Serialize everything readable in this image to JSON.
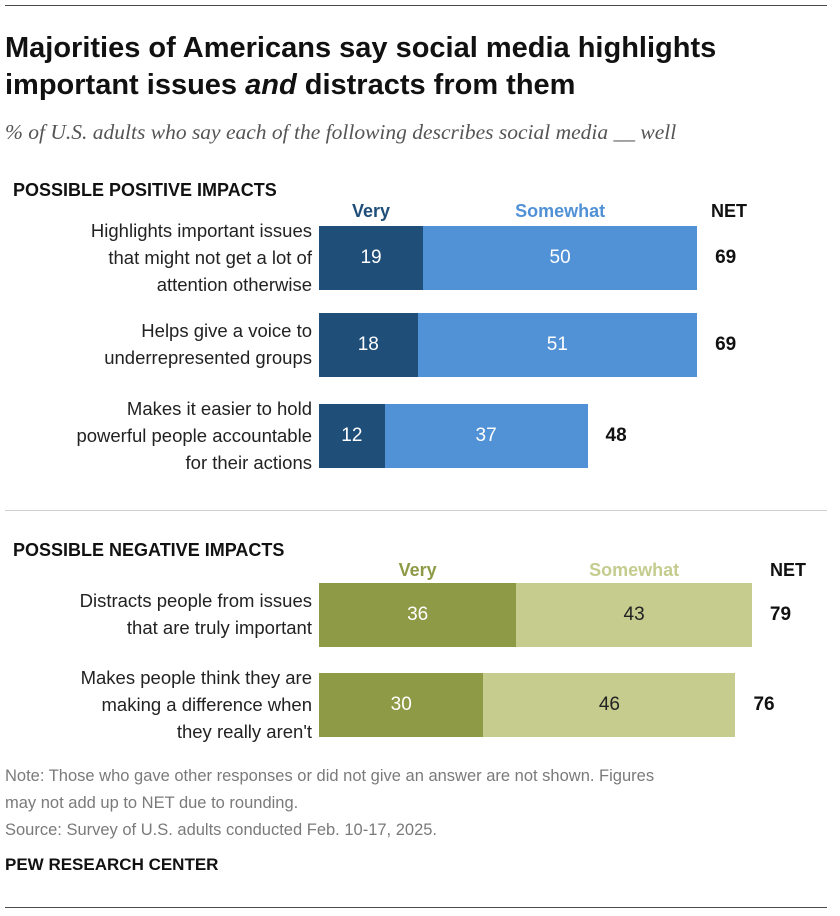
{
  "title": {
    "line1": "Majorities of Americans say social media highlights",
    "line2_before": "important issues ",
    "line2_em": "and",
    "line2_after": " distracts from them"
  },
  "subtitle": "% of U.S. adults who say each of the following describes social media __ well",
  "colors": {
    "positive_very": "#1f4e79",
    "positive_somewhat": "#5191d6",
    "negative_very": "#8e9a45",
    "negative_somewhat": "#c5cc8e",
    "positive_very_legend": "#1f4e79",
    "positive_somewhat_legend": "#5191d6",
    "negative_very_legend": "#8e9a45",
    "negative_somewhat_legend": "#c5cc8e"
  },
  "chart_data": [
    {
      "type": "bar",
      "stacked": true,
      "orientation": "horizontal",
      "section_title": "POSSIBLE POSITIVE IMPACTS",
      "legend": [
        "Very",
        "Somewhat"
      ],
      "net_label": "NET",
      "categories": [
        [
          "Highlights important issues",
          "that might not get a lot of",
          "attention otherwise"
        ],
        [
          "Helps give a voice to",
          "underrepresented groups"
        ],
        [
          "Makes it easier to hold",
          "powerful people accountable",
          "for their actions"
        ]
      ],
      "series": [
        {
          "name": "Very",
          "values": [
            19,
            18,
            12
          ]
        },
        {
          "name": "Somewhat",
          "values": [
            50,
            51,
            37
          ]
        }
      ],
      "net": [
        69,
        69,
        48
      ]
    },
    {
      "type": "bar",
      "stacked": true,
      "orientation": "horizontal",
      "section_title": "POSSIBLE NEGATIVE IMPACTS",
      "legend": [
        "Very",
        "Somewhat"
      ],
      "net_label": "NET",
      "categories": [
        [
          "Distracts people from issues",
          "that are truly important"
        ],
        [
          "Makes people think they are",
          "making a difference when",
          "they really aren't"
        ]
      ],
      "series": [
        {
          "name": "Very",
          "values": [
            36,
            30
          ]
        },
        {
          "name": "Somewhat",
          "values": [
            43,
            46
          ]
        }
      ],
      "net": [
        79,
        76
      ]
    }
  ],
  "note": {
    "line1": "Note: Those who gave other responses or did not give an answer are not shown. Figures",
    "line2": "may not add up to NET due to rounding.",
    "line3": "Source: Survey of U.S. adults conducted Feb. 10-17, 2025."
  },
  "brand": "PEW RESEARCH CENTER"
}
